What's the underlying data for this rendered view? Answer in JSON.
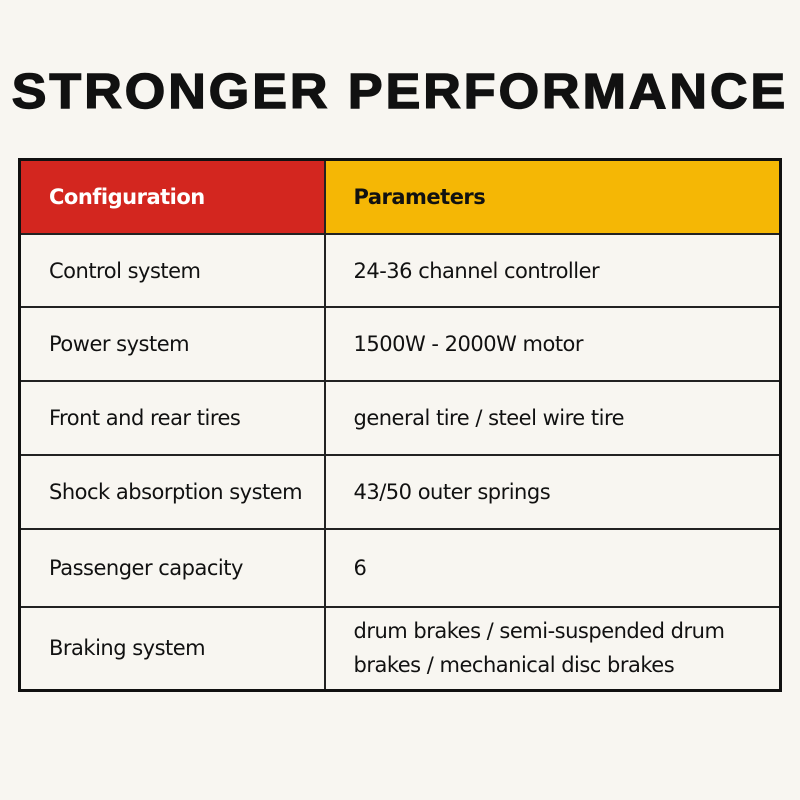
{
  "header": {
    "title": "STRONGER PERFORMANCE"
  },
  "table": {
    "columns": [
      "Configuration",
      "Parameters"
    ],
    "rows": [
      [
        "Control system",
        "24-36 channel controller"
      ],
      [
        "Power system",
        "1500W - 2000W motor"
      ],
      [
        "Front and rear tires",
        "general tire / steel wire tire"
      ],
      [
        "Shock absorption system",
        "43/50 outer springs"
      ],
      [
        "Passenger capacity",
        "6"
      ],
      [
        "Braking system",
        "drum brakes / semi-suspended drum brakes / mechanical disc brakes"
      ]
    ]
  }
}
